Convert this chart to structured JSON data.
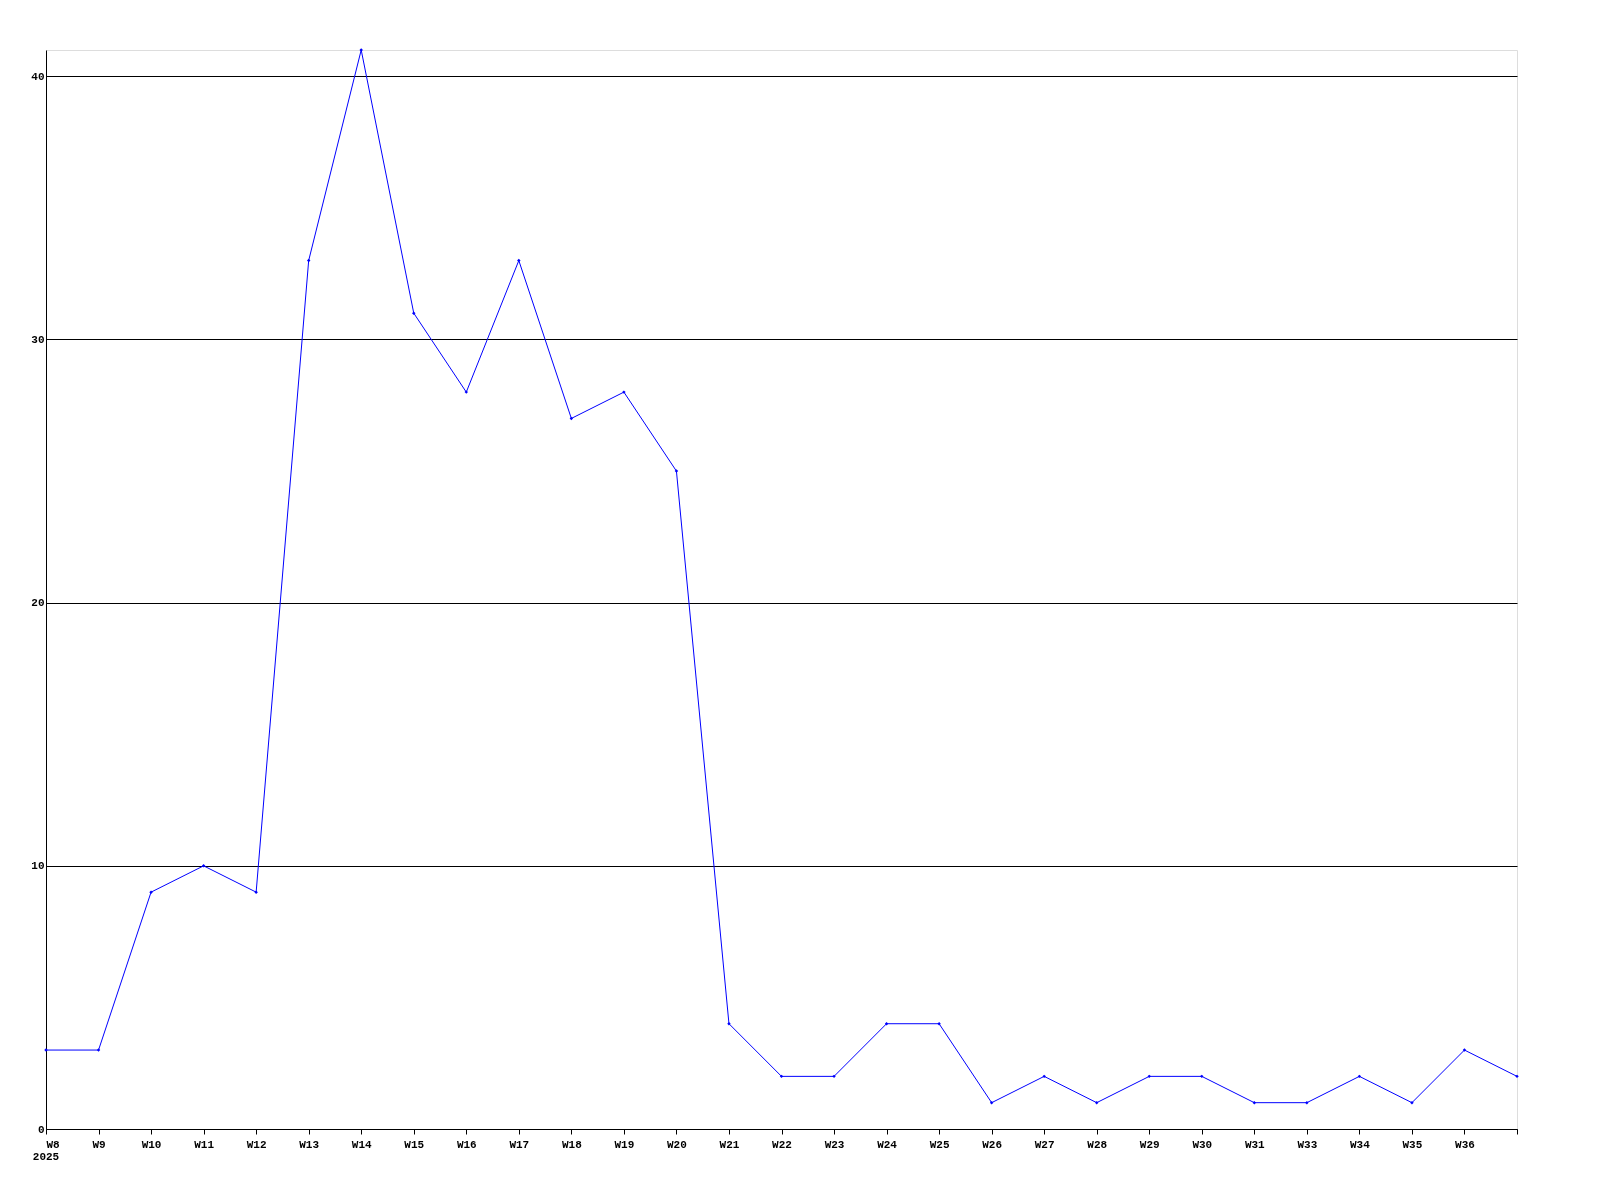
{
  "chart_data": {
    "type": "line",
    "categories": [
      "W8",
      "W9",
      "W10",
      "W11",
      "W12",
      "W13",
      "W14",
      "W15",
      "W16",
      "W17",
      "W18",
      "W19",
      "W20",
      "W21",
      "W22",
      "W23",
      "W24",
      "W25",
      "W26",
      "W27",
      "W28",
      "W29",
      "W30",
      "W31",
      "W33",
      "W34",
      "W35",
      "W36",
      null
    ],
    "series": [
      {
        "color": "#0000ff",
        "values": [
          3,
          3,
          9,
          10,
          9,
          33,
          41,
          31,
          28,
          33,
          27,
          28,
          25,
          4,
          2,
          2,
          4,
          4,
          1,
          2,
          1,
          2,
          2,
          1,
          1,
          2,
          1,
          3,
          2
        ]
      }
    ],
    "ylim": [
      0,
      41
    ],
    "yticks": [
      0,
      10,
      20,
      30,
      40
    ],
    "annotations": [
      "2025"
    ],
    "grid": "y",
    "marker": "diamond",
    "line_style": "solid"
  }
}
